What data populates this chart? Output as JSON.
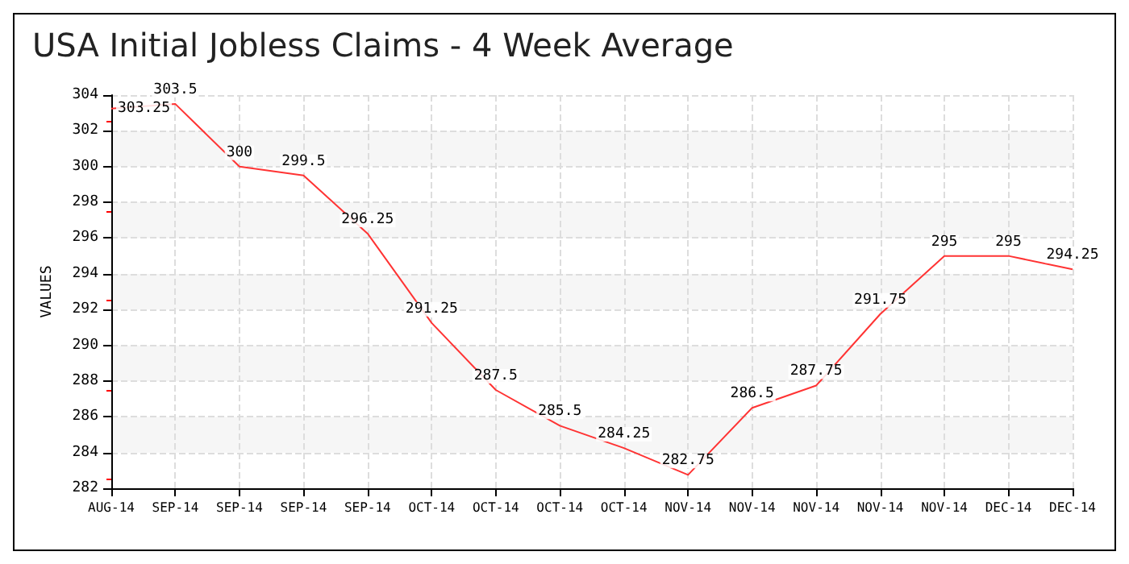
{
  "chart_data": {
    "type": "line",
    "title": "USA Initial Jobless Claims - 4 Week Average",
    "ylabel": "VALUES",
    "categories": [
      "AUG-14",
      "SEP-14",
      "SEP-14",
      "SEP-14",
      "SEP-14",
      "OCT-14",
      "OCT-14",
      "OCT-14",
      "OCT-14",
      "NOV-14",
      "NOV-14",
      "NOV-14",
      "NOV-14",
      "NOV-14",
      "DEC-14",
      "DEC-14"
    ],
    "series": [
      {
        "color": "#ff3333",
        "values": [
          303.25,
          303.5,
          300,
          299.5,
          296.25,
          291.25,
          287.5,
          285.5,
          284.25,
          282.75,
          286.5,
          287.75,
          291.75,
          295,
          295,
          294.25
        ]
      }
    ],
    "ylim": [
      282,
      304
    ],
    "yticks": [
      282,
      284,
      286,
      288,
      290,
      292,
      294,
      296,
      298,
      300,
      302,
      304
    ],
    "grid": true,
    "data_labels": true,
    "marker": "none",
    "line_style": "solid"
  }
}
